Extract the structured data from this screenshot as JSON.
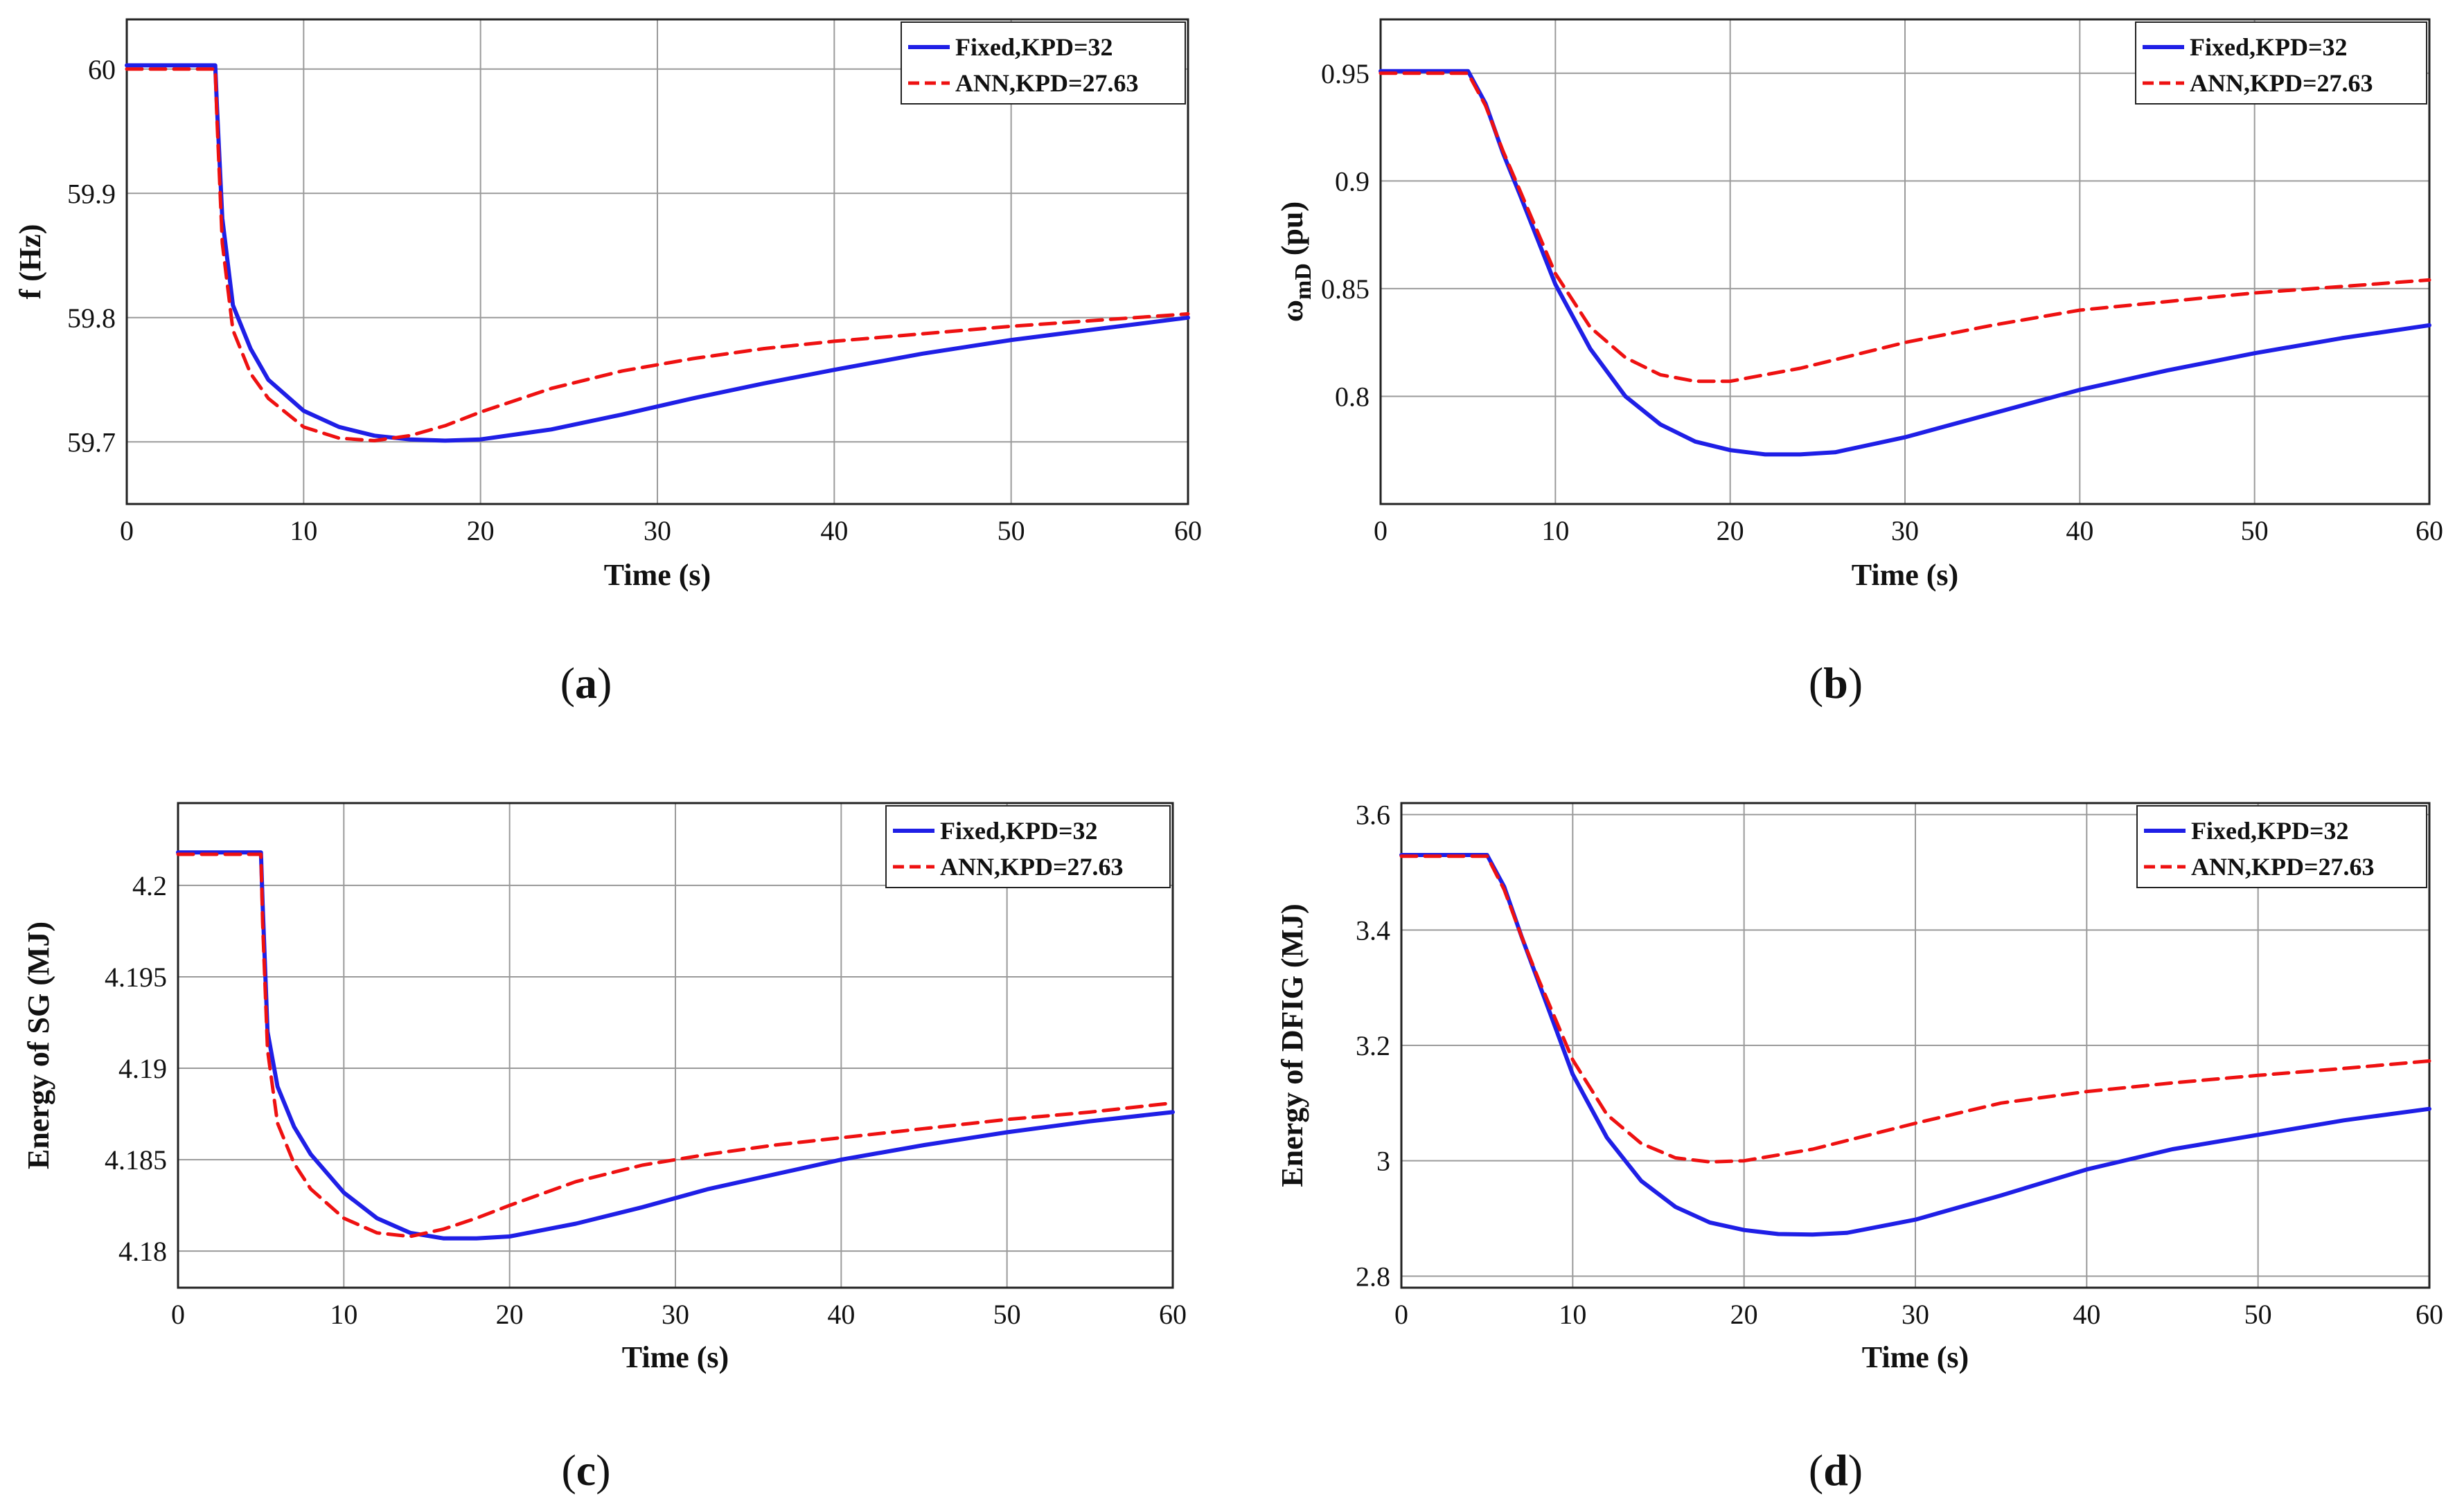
{
  "colors": {
    "fixed": "#1f1fe6",
    "ann": "#ee1111"
  },
  "chart_data": [
    {
      "id": "a",
      "type": "line",
      "panel_label": "a",
      "xlabel": "Time (s)",
      "ylabel": "f (Hz)",
      "xlim": [
        0,
        60
      ],
      "ylim": [
        59.65,
        60.04
      ],
      "xticks": [
        0,
        10,
        20,
        30,
        40,
        50,
        60
      ],
      "yticks": [
        59.7,
        59.8,
        59.9,
        60
      ],
      "ytick_labels": [
        "59.7",
        "59.8",
        "59.9",
        "60"
      ],
      "grid": true,
      "legend_position": "top-right",
      "series": [
        {
          "name": "Fixed,KPD=32",
          "style": "solid",
          "x": [
            0,
            5,
            5.1,
            5.4,
            6,
            7,
            8,
            10,
            12,
            14,
            16,
            18,
            20,
            24,
            28,
            32,
            36,
            40,
            45,
            50,
            55,
            60
          ],
          "y": [
            60.003,
            60.003,
            59.97,
            59.88,
            59.81,
            59.775,
            59.75,
            59.725,
            59.712,
            59.705,
            59.702,
            59.701,
            59.702,
            59.71,
            59.722,
            59.735,
            59.747,
            59.758,
            59.771,
            59.782,
            59.791,
            59.8
          ]
        },
        {
          "name": "ANN,KPD=27.63",
          "style": "dashed",
          "x": [
            0,
            5,
            5.1,
            5.4,
            6,
            7,
            8,
            10,
            12,
            14,
            16,
            18,
            20,
            24,
            28,
            32,
            36,
            40,
            45,
            50,
            55,
            60
          ],
          "y": [
            60.0,
            60.0,
            59.96,
            59.86,
            59.79,
            59.755,
            59.735,
            59.712,
            59.703,
            59.701,
            59.705,
            59.713,
            59.724,
            59.743,
            59.757,
            59.767,
            59.775,
            59.781,
            59.787,
            59.793,
            59.798,
            59.803
          ]
        }
      ]
    },
    {
      "id": "b",
      "type": "line",
      "panel_label": "b",
      "xlabel": "Time (s)",
      "ylabel_main": "ω",
      "ylabel_sub": "mD",
      "ylabel_unit": " (pu)",
      "xlim": [
        0,
        60
      ],
      "ylim": [
        0.75,
        0.975
      ],
      "xticks": [
        0,
        10,
        20,
        30,
        40,
        50,
        60
      ],
      "yticks": [
        0.8,
        0.85,
        0.9,
        0.95
      ],
      "ytick_labels": [
        "0.8",
        "0.85",
        "0.9",
        "0.95"
      ],
      "grid": true,
      "legend_position": "top-right",
      "series": [
        {
          "name": "Fixed,KPD=32",
          "style": "solid",
          "x": [
            0,
            5,
            6,
            7,
            8,
            10,
            12,
            14,
            16,
            18,
            20,
            22,
            24,
            26,
            30,
            35,
            40,
            45,
            50,
            55,
            60
          ],
          "y": [
            0.951,
            0.951,
            0.936,
            0.913,
            0.893,
            0.852,
            0.822,
            0.8,
            0.787,
            0.779,
            0.775,
            0.773,
            0.773,
            0.774,
            0.781,
            0.792,
            0.803,
            0.812,
            0.82,
            0.827,
            0.833
          ]
        },
        {
          "name": "ANN,KPD=27.63",
          "style": "dashed",
          "x": [
            0,
            5,
            6,
            7,
            8,
            10,
            12,
            14,
            16,
            18,
            20,
            22,
            24,
            26,
            30,
            35,
            40,
            45,
            50,
            55,
            60
          ],
          "y": [
            0.95,
            0.95,
            0.935,
            0.914,
            0.895,
            0.857,
            0.832,
            0.818,
            0.81,
            0.807,
            0.807,
            0.81,
            0.813,
            0.817,
            0.825,
            0.833,
            0.84,
            0.844,
            0.848,
            0.851,
            0.854
          ]
        }
      ]
    },
    {
      "id": "c",
      "type": "line",
      "panel_label": "c",
      "xlabel": "Time (s)",
      "ylabel": "Energy of SG (MJ)",
      "xlim": [
        0,
        60
      ],
      "ylim": [
        4.178,
        4.2045
      ],
      "xticks": [
        0,
        10,
        20,
        30,
        40,
        50,
        60
      ],
      "yticks": [
        4.18,
        4.185,
        4.19,
        4.195,
        4.2
      ],
      "ytick_labels": [
        "4.18",
        "4.185",
        "4.19",
        "4.195",
        "4.2"
      ],
      "grid": true,
      "legend_position": "top-right",
      "series": [
        {
          "name": "Fixed,KPD=32",
          "style": "solid",
          "x": [
            0,
            5,
            5.1,
            5.4,
            6,
            7,
            8,
            10,
            12,
            14,
            16,
            18,
            20,
            24,
            28,
            32,
            36,
            40,
            45,
            50,
            55,
            60
          ],
          "y": [
            4.2018,
            4.2018,
            4.199,
            4.192,
            4.189,
            4.1868,
            4.1853,
            4.1832,
            4.1818,
            4.181,
            4.1807,
            4.1807,
            4.1808,
            4.1815,
            4.1824,
            4.1834,
            4.1842,
            4.185,
            4.1858,
            4.1865,
            4.1871,
            4.1876
          ]
        },
        {
          "name": "ANN,KPD=27.63",
          "style": "dashed",
          "x": [
            0,
            5,
            5.1,
            5.4,
            6,
            7,
            8,
            10,
            12,
            14,
            16,
            18,
            20,
            24,
            28,
            32,
            36,
            40,
            45,
            50,
            55,
            60
          ],
          "y": [
            4.2017,
            4.2017,
            4.198,
            4.191,
            4.187,
            4.1848,
            4.1834,
            4.1818,
            4.181,
            4.1808,
            4.1812,
            4.1818,
            4.1825,
            4.1838,
            4.1847,
            4.1853,
            4.1858,
            4.1862,
            4.1867,
            4.1872,
            4.1876,
            4.1881
          ]
        }
      ]
    },
    {
      "id": "d",
      "type": "line",
      "panel_label": "d",
      "xlabel": "Time (s)",
      "ylabel": "Energy of DFIG (MJ)",
      "xlim": [
        0,
        60
      ],
      "ylim": [
        2.78,
        3.62
      ],
      "xticks": [
        0,
        10,
        20,
        30,
        40,
        50,
        60
      ],
      "yticks": [
        2.8,
        3.0,
        3.2,
        3.4,
        3.6
      ],
      "ytick_labels": [
        "2.8",
        "3",
        "3.2",
        "3.4",
        "3.6"
      ],
      "grid": true,
      "legend_position": "top-right",
      "series": [
        {
          "name": "Fixed,KPD=32",
          "style": "solid",
          "x": [
            0,
            5,
            6,
            7,
            8,
            10,
            12,
            14,
            16,
            18,
            20,
            22,
            24,
            26,
            30,
            35,
            40,
            45,
            50,
            55,
            60
          ],
          "y": [
            3.53,
            3.53,
            3.475,
            3.39,
            3.31,
            3.15,
            3.04,
            2.965,
            2.92,
            2.893,
            2.88,
            2.873,
            2.872,
            2.875,
            2.898,
            2.94,
            2.985,
            3.02,
            3.045,
            3.07,
            3.09
          ]
        },
        {
          "name": "ANN,KPD=27.63",
          "style": "dashed",
          "x": [
            0,
            5,
            6,
            7,
            8,
            10,
            12,
            14,
            16,
            18,
            20,
            22,
            24,
            26,
            30,
            35,
            40,
            45,
            50,
            55,
            60
          ],
          "y": [
            3.528,
            3.528,
            3.47,
            3.39,
            3.315,
            3.175,
            3.08,
            3.03,
            3.005,
            2.998,
            3.0,
            3.01,
            3.02,
            3.035,
            3.065,
            3.1,
            3.12,
            3.135,
            3.148,
            3.16,
            3.173
          ]
        }
      ]
    }
  ]
}
